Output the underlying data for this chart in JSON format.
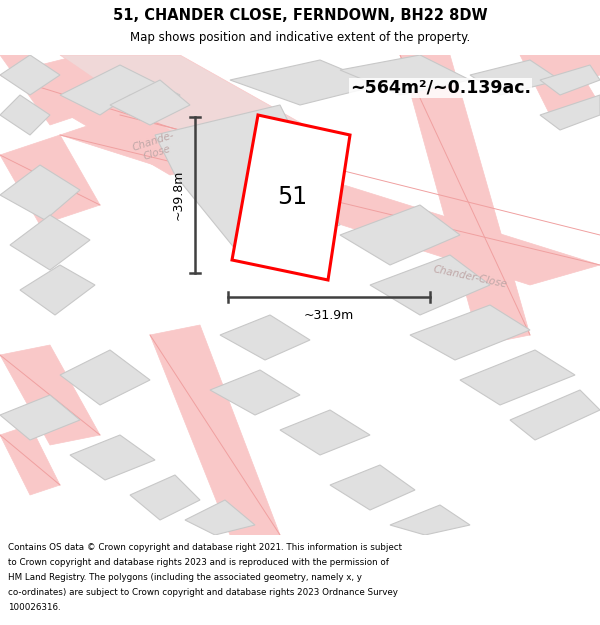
{
  "title": "51, CHANDER CLOSE, FERNDOWN, BH22 8DW",
  "subtitle": "Map shows position and indicative extent of the property.",
  "area_text": "~564m²/~0.139ac.",
  "width_text": "~31.9m",
  "height_text": "~39.8m",
  "number_text": "51",
  "footer_lines": [
    "Contains OS data © Crown copyright and database right 2021. This information is subject",
    "to Crown copyright and database rights 2023 and is reproduced with the permission of",
    "HM Land Registry. The polygons (including the associated geometry, namely x, y",
    "co-ordinates) are subject to Crown copyright and database rights 2023 Ordnance Survey",
    "100026316."
  ],
  "bg_color": "#ffffff",
  "title_color": "#000000",
  "road_color": "#f9c8c8",
  "road_edge_color": "#f0a0a0",
  "building_color": "#e0e0e0",
  "building_edge_color": "#c8c8c8",
  "highlight_color": "#ff0000",
  "road_label_color": "#c0a8a8",
  "dim_color": "#404040",
  "road_band_color": "#f0d8d8",
  "road_band_edge": "#e8c8c8"
}
